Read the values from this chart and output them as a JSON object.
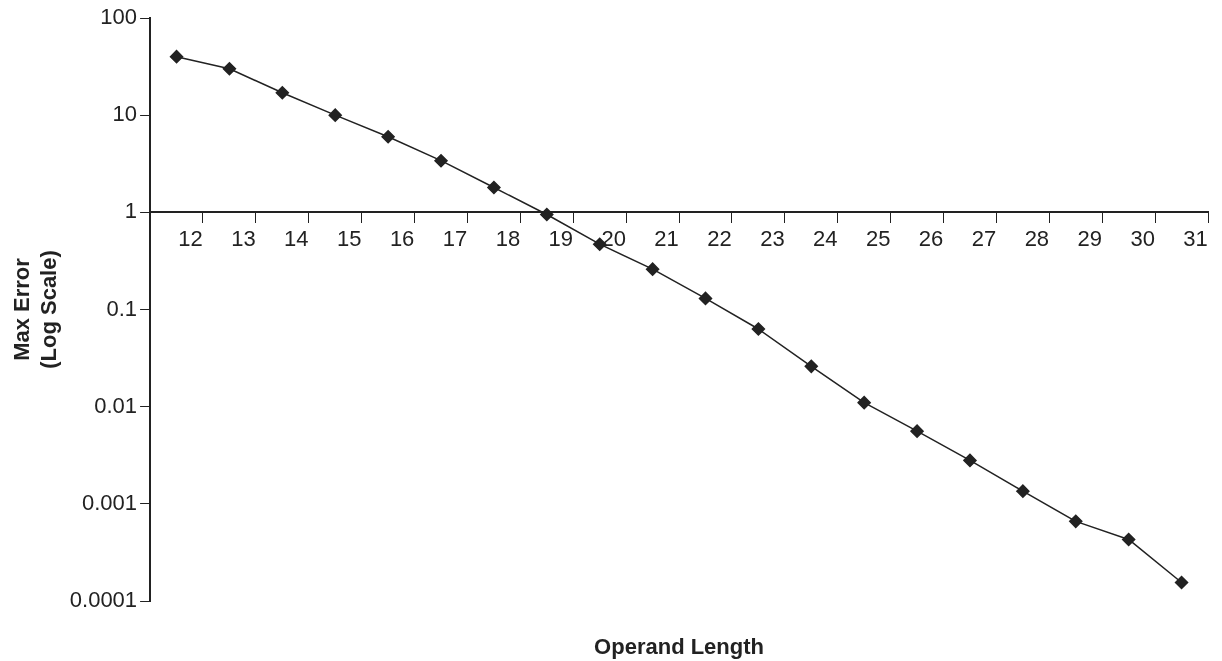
{
  "chart_data": {
    "type": "line",
    "xlabel": "Operand Length",
    "ylabel": "Max Error (Log Scale)",
    "categories": [
      "12",
      "13",
      "14",
      "15",
      "16",
      "17",
      "18",
      "19",
      "20",
      "21",
      "22",
      "23",
      "24",
      "25",
      "26",
      "27",
      "28",
      "29",
      "30",
      "31"
    ],
    "series": [
      {
        "color": "#222222",
        "values": [
          40,
          30,
          17,
          10,
          6,
          3.4,
          1.8,
          0.95,
          0.47,
          0.26,
          0.13,
          0.063,
          0.026,
          0.011,
          0.0056,
          0.0028,
          0.00135,
          0.00066,
          0.00043,
          0.000155
        ]
      }
    ],
    "log": true,
    "ylim": [
      0.0001,
      100
    ],
    "yticks": [
      0.0001,
      0.001,
      0.01,
      0.1,
      1,
      10,
      100
    ],
    "grid": false,
    "legend": false,
    "marker": "diamond",
    "line_style": "solid"
  }
}
